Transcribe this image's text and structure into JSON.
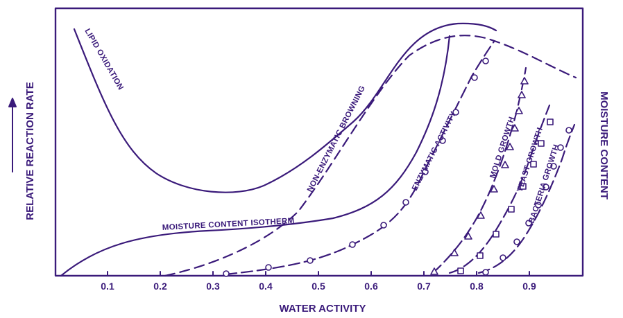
{
  "colors": {
    "ink": "#3a1a7a",
    "background": "#ffffff"
  },
  "axes": {
    "x_title": "WATER ACTIVITY",
    "y_left_title": "RELATIVE REACTION RATE",
    "y_right_title": "MOISTURE CONTENT",
    "y_left_arrow": "up-arrow",
    "x_ticks": [
      "0.1",
      "0.2",
      "0.3",
      "0.4",
      "0.5",
      "0.6",
      "0.7",
      "0.8",
      "0.9"
    ],
    "x_range": [
      0,
      1
    ]
  },
  "labels": {
    "lipid": "LIPID OXIDATION",
    "browning": "NON-ENZYMATIC BROWNING",
    "isotherm": "MOISTURE CONTENT ISOTHERM",
    "enzymatic": "ENZYMATIC ACTIVITY",
    "mold": "MOLD GROWTH",
    "yeast": "YEAST GROWTH",
    "bacteria": "BACTERIA GROWTH"
  },
  "chart_data": {
    "type": "line",
    "xlabel": "WATER ACTIVITY",
    "ylabel": "RELATIVE REACTION RATE",
    "y2label": "MOISTURE CONTENT",
    "xlim": [
      0,
      1
    ],
    "x_ticks": [
      0.1,
      0.2,
      0.3,
      0.4,
      0.5,
      0.6,
      0.7,
      0.8,
      0.9
    ],
    "series": [
      {
        "name": "LIPID OXIDATION",
        "style": "solid"
      },
      {
        "name": "NON-ENZYMATIC BROWNING",
        "style": "dashed"
      },
      {
        "name": "MOISTURE CONTENT ISOTHERM",
        "style": "solid"
      },
      {
        "name": "ENZYMATIC ACTIVITY",
        "style": "dash-circle"
      },
      {
        "name": "MOLD GROWTH",
        "style": "dash-triangle"
      },
      {
        "name": "YEAST GROWTH",
        "style": "dash-square"
      },
      {
        "name": "BACTERIA GROWTH",
        "style": "dash-circle"
      }
    ]
  }
}
